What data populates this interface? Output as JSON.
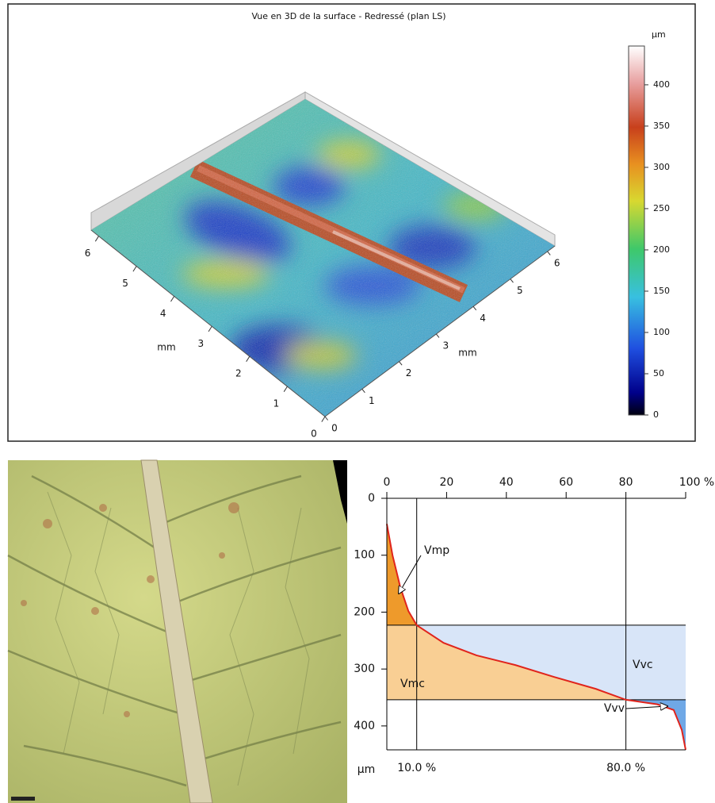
{
  "chart_data": [
    {
      "type": "surface3d",
      "title": "Vue en 3D de la surface - Redressé (plan LS)",
      "x_label": "mm",
      "y_label": "mm",
      "xlim": [
        0,
        6.2
      ],
      "xticks": [
        0,
        1,
        2,
        3,
        4,
        5,
        6
      ],
      "ylim": [
        0,
        6.2
      ],
      "yticks": [
        0,
        1,
        2,
        3,
        4,
        5,
        6
      ],
      "colorbar_label": "µm",
      "zlim": [
        0,
        447
      ],
      "zticks": [
        0,
        50,
        100,
        150,
        200,
        250,
        300,
        350,
        400
      ]
    },
    {
      "type": "abbott",
      "y_label": "µm",
      "color": "#e0241c",
      "xlim": [
        0,
        100
      ],
      "xticks": [
        0,
        20,
        40,
        60,
        80,
        {
          "value": 100,
          "label": "100 %"
        }
      ],
      "ylim": [
        0,
        442
      ],
      "yticks": [
        0,
        100,
        200,
        300,
        400
      ],
      "x": [
        0,
        1.9,
        4.5,
        7.2,
        10,
        19,
        30,
        43,
        56,
        70,
        80,
        90.5,
        96,
        98.7,
        100
      ],
      "values": [
        45,
        100,
        156,
        198,
        223,
        254,
        276,
        293,
        314,
        335,
        354,
        362,
        372,
        407,
        442
      ],
      "thresholds": {
        "x": [
          10,
          80
        ],
        "x_labels": [
          "10.0 %",
          "80.0 %"
        ],
        "y": [
          223,
          354
        ]
      },
      "regions": [
        {
          "name": "Vmp",
          "color": "#ee9a2b"
        },
        {
          "name": "Vmc",
          "color": "#f9cf94"
        },
        {
          "name": "Vvc",
          "color": "#d8e5f8"
        },
        {
          "name": "Vvv",
          "color": "#6fa8e6"
        }
      ]
    }
  ]
}
